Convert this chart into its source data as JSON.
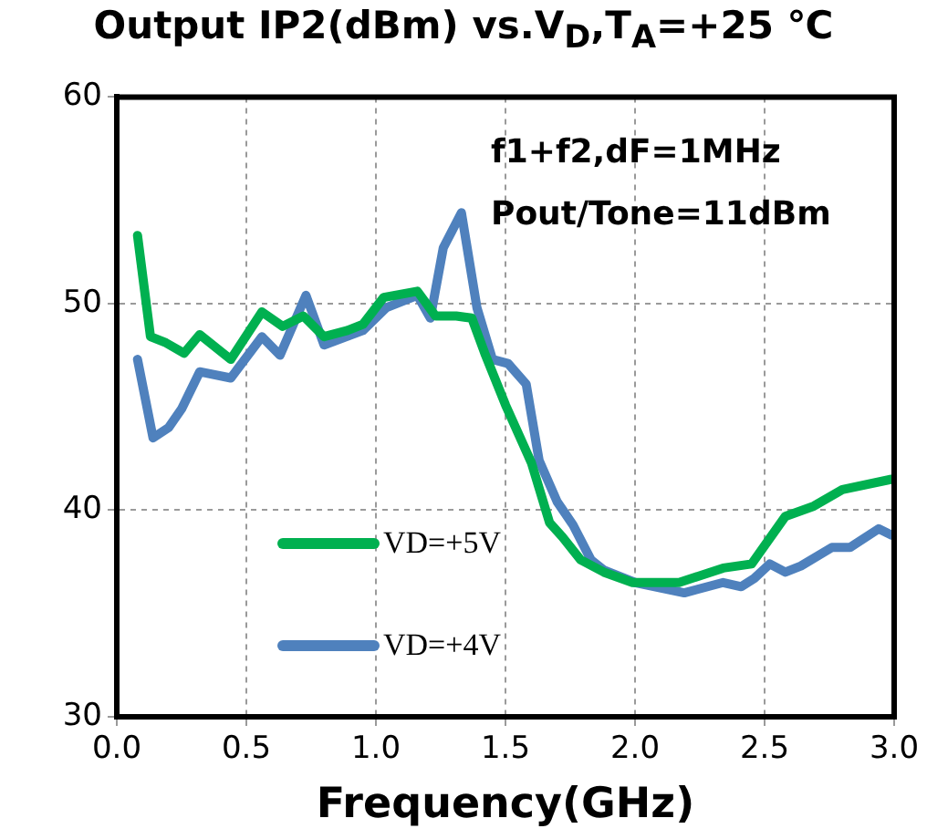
{
  "chart_data": {
    "type": "line",
    "title": "Output IP2(dBm) vs.V$_{D}$,T$_{A}$=+25 ℃",
    "xlabel": "Frequency(GHz)",
    "annotations": [
      "f1+f2,dF=1MHz",
      "Pout/Tone=11dBm"
    ],
    "series": [
      {
        "name": "VD=+5V",
        "color": "#00b050",
        "x": [
          0.08,
          0.13,
          0.19,
          0.26,
          0.32,
          0.44,
          0.56,
          0.64,
          0.72,
          0.8,
          0.89,
          0.95,
          1.03,
          1.16,
          1.23,
          1.31,
          1.37,
          1.42,
          1.5,
          1.6,
          1.67,
          1.72,
          1.79,
          1.88,
          1.99,
          2.17,
          2.34,
          2.45,
          2.58,
          2.69,
          2.8,
          2.99
        ],
        "values": [
          53.3,
          48.4,
          48.1,
          47.6,
          48.5,
          47.3,
          49.6,
          48.9,
          49.4,
          48.4,
          48.7,
          49.0,
          50.3,
          50.6,
          49.4,
          49.4,
          49.3,
          47.6,
          45.1,
          42.3,
          39.4,
          38.7,
          37.6,
          37.0,
          36.5,
          36.5,
          37.2,
          37.4,
          39.7,
          40.2,
          41.0,
          41.5
        ]
      },
      {
        "name": "VD=+4V",
        "color": "#4f81bd",
        "x": [
          0.08,
          0.14,
          0.2,
          0.25,
          0.32,
          0.44,
          0.56,
          0.63,
          0.73,
          0.8,
          0.95,
          1.04,
          1.16,
          1.21,
          1.26,
          1.33,
          1.39,
          1.45,
          1.51,
          1.58,
          1.63,
          1.7,
          1.76,
          1.83,
          1.88,
          2.0,
          2.19,
          2.34,
          2.41,
          2.46,
          2.52,
          2.58,
          2.64,
          2.76,
          2.83,
          2.94,
          2.99
        ],
        "values": [
          47.3,
          43.5,
          44.0,
          44.9,
          46.7,
          46.4,
          48.4,
          47.5,
          50.4,
          48.0,
          48.7,
          49.8,
          50.4,
          49.3,
          52.7,
          54.4,
          49.8,
          47.3,
          47.1,
          46.1,
          42.4,
          40.4,
          39.3,
          37.6,
          37.1,
          36.5,
          36.0,
          36.5,
          36.3,
          36.7,
          37.4,
          37.0,
          37.3,
          38.2,
          38.2,
          39.1,
          38.8
        ]
      }
    ],
    "xlim": [
      0,
      3
    ],
    "xticks": [
      {
        "value": 0,
        "label": "0.0"
      },
      {
        "value": 0.5,
        "label": "0.5"
      },
      {
        "value": 1,
        "label": "1.0"
      },
      {
        "value": 1.5,
        "label": "1.5"
      },
      {
        "value": 2,
        "label": "2.0"
      },
      {
        "value": 2.5,
        "label": "2.5"
      },
      {
        "value": 3,
        "label": "3.0"
      }
    ],
    "ylim": [
      30,
      60
    ],
    "yticks": [
      30,
      40,
      50,
      60
    ],
    "grid": true,
    "legend": "bottom left",
    "marker": "none",
    "line_style": "solid"
  }
}
